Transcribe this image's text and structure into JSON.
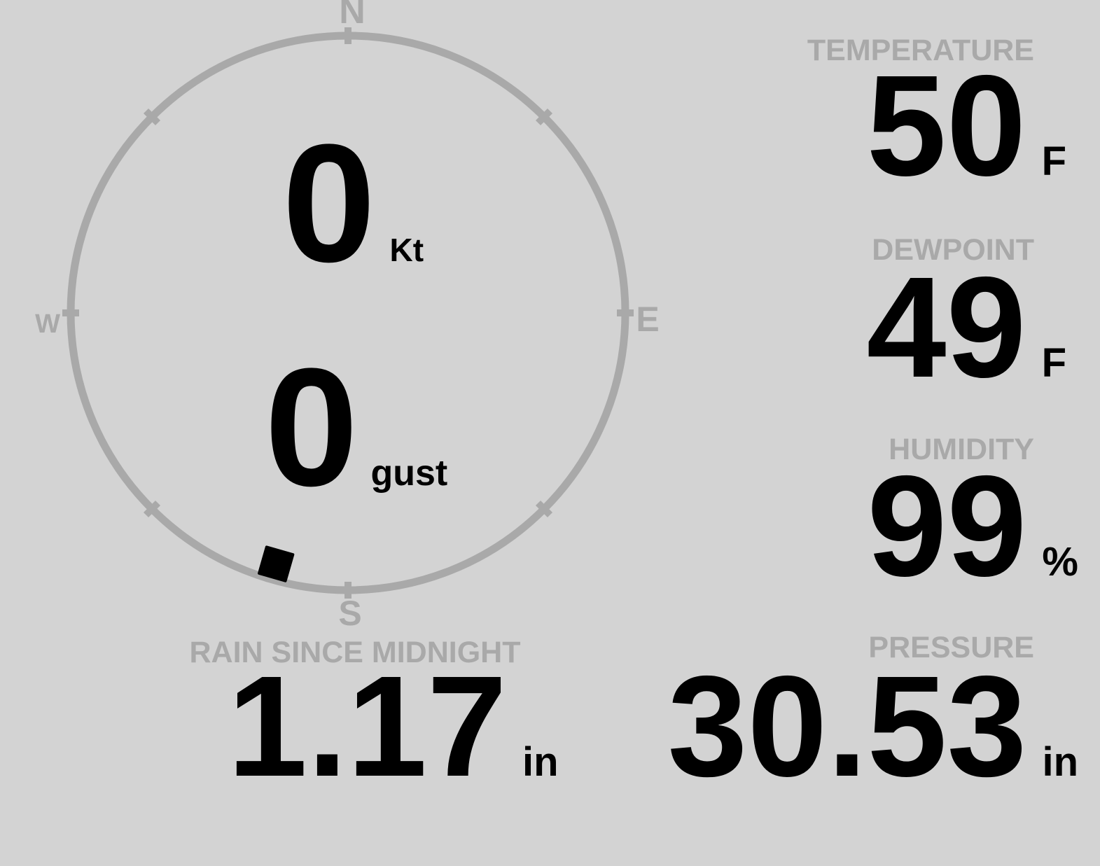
{
  "colors": {
    "background": "#d3d3d3",
    "muted": "#a9a9a9",
    "value": "#000000"
  },
  "compass": {
    "cardinals": {
      "n": "N",
      "e": "E",
      "s": "S",
      "w": "W"
    },
    "wind_speed": {
      "value": "0",
      "unit": "Kt"
    },
    "wind_gust": {
      "value": "0",
      "unit": "gust"
    },
    "direction_deg": 196
  },
  "metrics": {
    "temperature": {
      "label": "TEMPERATURE",
      "value": "50",
      "unit": "F"
    },
    "dewpoint": {
      "label": "DEWPOINT",
      "value": "49",
      "unit": "F"
    },
    "humidity": {
      "label": "HUMIDITY",
      "value": "99",
      "unit": "%"
    },
    "rain_since_midnight": {
      "label": "RAIN SINCE MIDNIGHT",
      "value": "1.17",
      "unit": "in"
    },
    "pressure": {
      "label": "PRESSURE",
      "value": "30.53",
      "unit": "in"
    }
  }
}
